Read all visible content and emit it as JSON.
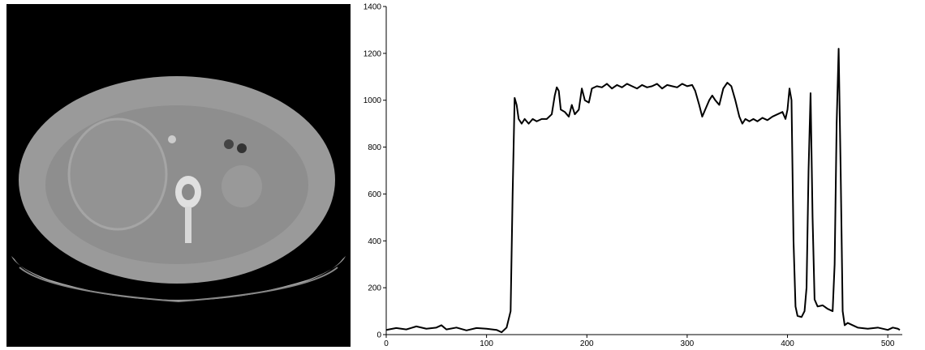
{
  "chart_data": {
    "type": "line",
    "x": [
      0,
      10,
      20,
      30,
      40,
      50,
      55,
      60,
      70,
      80,
      90,
      100,
      110,
      115,
      120,
      124,
      126,
      128,
      130,
      132,
      135,
      138,
      142,
      146,
      150,
      155,
      160,
      165,
      168,
      170,
      172,
      174,
      178,
      182,
      185,
      188,
      192,
      195,
      198,
      202,
      205,
      210,
      215,
      220,
      225,
      230,
      235,
      240,
      245,
      250,
      255,
      260,
      265,
      270,
      275,
      280,
      285,
      290,
      295,
      300,
      305,
      308,
      312,
      315,
      318,
      322,
      325,
      328,
      332,
      336,
      340,
      344,
      348,
      352,
      355,
      358,
      362,
      366,
      370,
      375,
      380,
      385,
      390,
      395,
      398,
      400,
      402,
      404,
      406,
      408,
      410,
      414,
      417,
      419,
      421,
      423,
      425,
      427,
      430,
      435,
      440,
      445,
      447,
      449,
      451,
      453,
      455,
      457,
      460,
      465,
      470,
      480,
      490,
      500,
      505,
      510,
      512
    ],
    "values": [
      20,
      28,
      22,
      35,
      25,
      30,
      40,
      22,
      30,
      18,
      28,
      25,
      20,
      10,
      30,
      100,
      600,
      1010,
      980,
      920,
      900,
      920,
      900,
      920,
      910,
      920,
      920,
      940,
      1020,
      1055,
      1040,
      960,
      950,
      930,
      980,
      940,
      960,
      1050,
      1000,
      990,
      1050,
      1060,
      1055,
      1070,
      1050,
      1065,
      1055,
      1070,
      1060,
      1050,
      1065,
      1055,
      1060,
      1070,
      1050,
      1065,
      1060,
      1055,
      1070,
      1060,
      1065,
      1040,
      980,
      930,
      960,
      1000,
      1020,
      1000,
      980,
      1050,
      1075,
      1060,
      1000,
      930,
      900,
      920,
      910,
      920,
      910,
      925,
      915,
      930,
      940,
      950,
      920,
      960,
      1050,
      1000,
      400,
      120,
      80,
      75,
      100,
      200,
      700,
      1030,
      500,
      150,
      120,
      125,
      110,
      100,
      300,
      900,
      1220,
      700,
      100,
      40,
      50,
      40,
      30,
      25,
      30,
      20,
      30,
      25,
      20
    ],
    "color": "#000000",
    "xlim": [
      0,
      512
    ],
    "ylim": [
      0,
      1400
    ],
    "xticks": [
      0,
      100,
      200,
      300,
      400,
      500
    ],
    "yticks": [
      0,
      200,
      400,
      600,
      800,
      1000,
      1200,
      1400
    ],
    "grid": false
  }
}
